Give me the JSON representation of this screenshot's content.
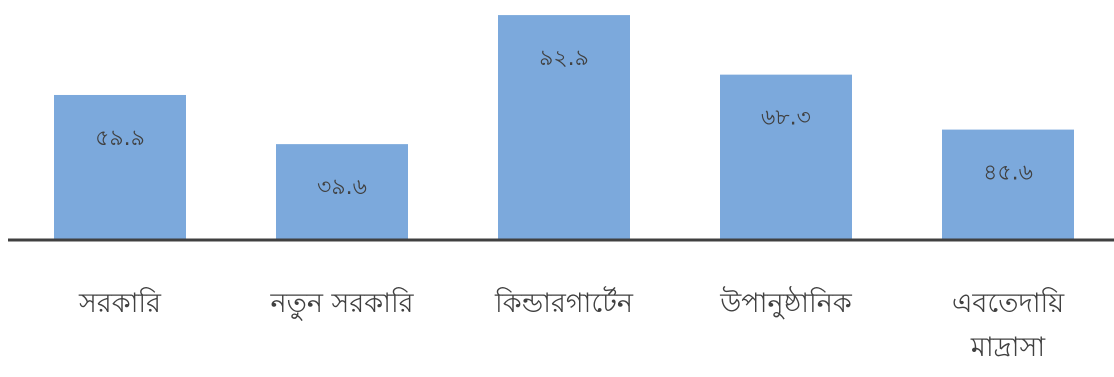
{
  "chart_data": {
    "type": "bar",
    "categories": [
      [
        "সরকারি"
      ],
      [
        "নতুন সরকারি"
      ],
      [
        "কিন্ডারগার্টেন"
      ],
      [
        "উপানুষ্ঠানিক"
      ],
      [
        "এবতেদায়ি",
        "মাদ্রাসা"
      ]
    ],
    "values": [
      59.9,
      39.6,
      92.9,
      68.3,
      45.6
    ],
    "value_labels": [
      "৫৯.৯",
      "৩৯.৬",
      "৯২.৯",
      "৬৮.৩",
      "৪৫.৬"
    ],
    "title": "",
    "xlabel": "",
    "ylabel": "",
    "ylim": [
      0,
      95
    ],
    "grid": false,
    "colors": {
      "bar": "#7ca9dc",
      "axis": "#404040",
      "text": "#404040"
    }
  }
}
